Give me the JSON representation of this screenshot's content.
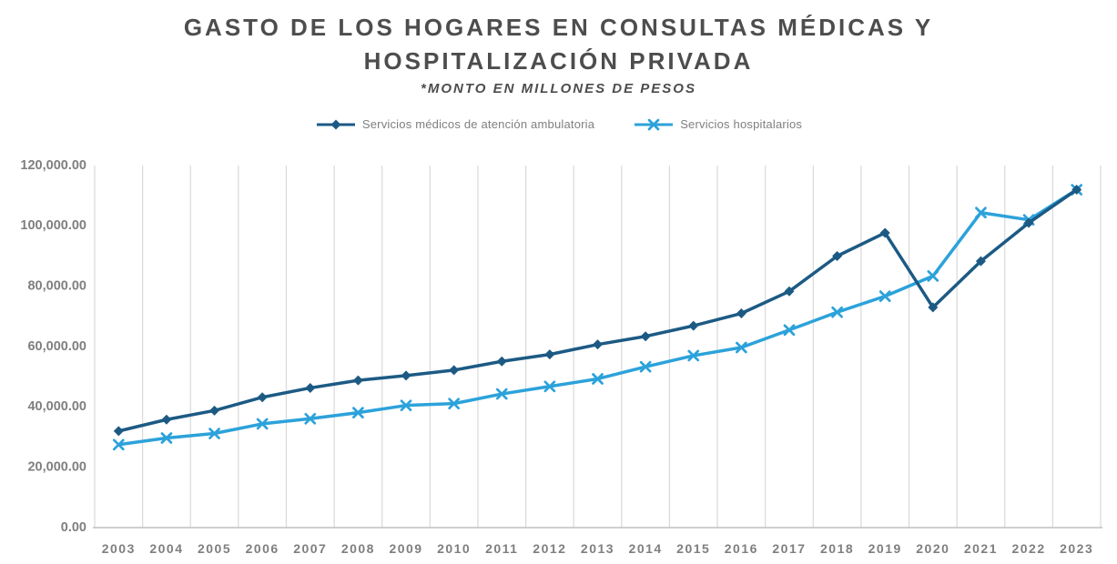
{
  "title": {
    "line1": "GASTO DE LOS HOGARES EN CONSULTAS MÉDICAS Y",
    "line2": "HOSPITALIZACIÓN PRIVADA",
    "subtitle": "*MONTO EN MILLONES DE PESOS"
  },
  "legend": [
    {
      "label": "Servicios médicos de atención ambulatoria",
      "marker": "diamond",
      "color": "#1c5a84"
    },
    {
      "label": "Servicios hospitalarios",
      "marker": "x",
      "color": "#2ca2da"
    }
  ],
  "colors": {
    "series_ambulatoria": "#1c5a84",
    "series_hospitalarios": "#2ca2da",
    "title_text": "#4d4d4d",
    "axis_labels": "#7f7f7f",
    "gridline": "#d9d9d9",
    "axis_line": "#bfbfbf",
    "legend_text": "#7f7f7f"
  },
  "chart_data": {
    "type": "line",
    "title": "GASTO DE LOS HOGARES EN CONSULTAS MÉDICAS Y HOSPITALIZACIÓN PRIVADA",
    "subtitle": "*MONTO EN MILLONES DE PESOS",
    "unit": "millones de pesos",
    "categories": [
      "2003",
      "2004",
      "2005",
      "2006",
      "2007",
      "2008",
      "2009",
      "2010",
      "2011",
      "2012",
      "2013",
      "2014",
      "2015",
      "2016",
      "2017",
      "2018",
      "2019",
      "2020",
      "2021",
      "2022",
      "2023"
    ],
    "series": [
      {
        "name": "Servicios médicos de atención ambulatoria",
        "color": "#1c5a84",
        "marker": "diamond",
        "values": [
          32000,
          35800,
          38800,
          43200,
          46300,
          48800,
          50400,
          52200,
          55100,
          57400,
          60700,
          63400,
          66900,
          71000,
          78300,
          90000,
          97700,
          73000,
          88300,
          101000,
          112000
        ]
      },
      {
        "name": "Servicios hospitalarios",
        "color": "#2ca2da",
        "marker": "x",
        "values": [
          27500,
          29700,
          31200,
          34400,
          36100,
          38100,
          40500,
          41100,
          44300,
          46800,
          49300,
          53300,
          57000,
          59700,
          65500,
          71400,
          76700,
          83400,
          104400,
          102000,
          112000
        ]
      }
    ],
    "ylim": [
      0,
      120000
    ],
    "ytick_step": 20000,
    "ytick_labels": [
      "0.00",
      "20,000.00",
      "40,000.00",
      "60,000.00",
      "80,000.00",
      "100,000.00",
      "120,000.00"
    ],
    "grid": "vertical",
    "legend_position": "top"
  }
}
